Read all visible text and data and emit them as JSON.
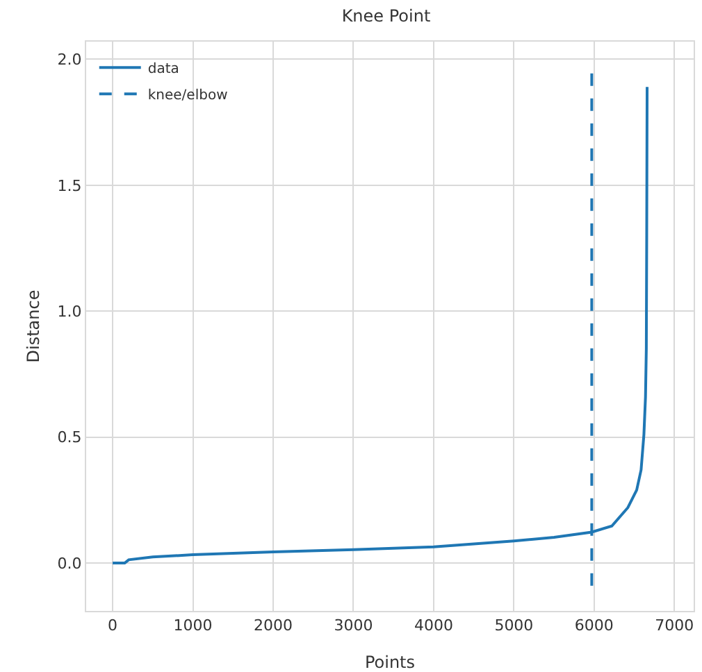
{
  "chart_data": {
    "type": "line",
    "title": "Knee Point",
    "xlabel": "Points",
    "ylabel": "Distance",
    "xlim": [
      -330,
      7240
    ],
    "xticks": [
      0,
      1000,
      2000,
      3000,
      4000,
      5000,
      6000,
      7000
    ],
    "ylim": [
      -0.19,
      2.07
    ],
    "yticks": [
      {
        "value": 0,
        "label": "0.0"
      },
      0.5,
      {
        "value": 1,
        "label": "1.0"
      },
      1.5,
      {
        "value": 2,
        "label": "2.0"
      }
    ],
    "grid": true,
    "legend": "top left",
    "marker": "none",
    "series": [
      {
        "name": "data",
        "color": "#1f77b4",
        "line_style": "solid",
        "x": [
          0,
          150,
          200,
          500,
          1000,
          2000,
          3000,
          4000,
          5000,
          5500,
          5970,
          6220,
          6420,
          6530,
          6585,
          6620,
          6640,
          6650,
          6655,
          6660
        ],
        "values": [
          0,
          0,
          0.013,
          0.024,
          0.033,
          0.044,
          0.053,
          0.064,
          0.088,
          0.102,
          0.123,
          0.147,
          0.22,
          0.29,
          0.37,
          0.51,
          0.66,
          0.85,
          1.3,
          1.89
        ]
      },
      {
        "name": "knee/elbow",
        "color": "#1f77b4",
        "line_style": "dashed",
        "x": [
          5970,
          5970
        ],
        "values": [
          -0.09,
          1.96
        ]
      }
    ]
  }
}
